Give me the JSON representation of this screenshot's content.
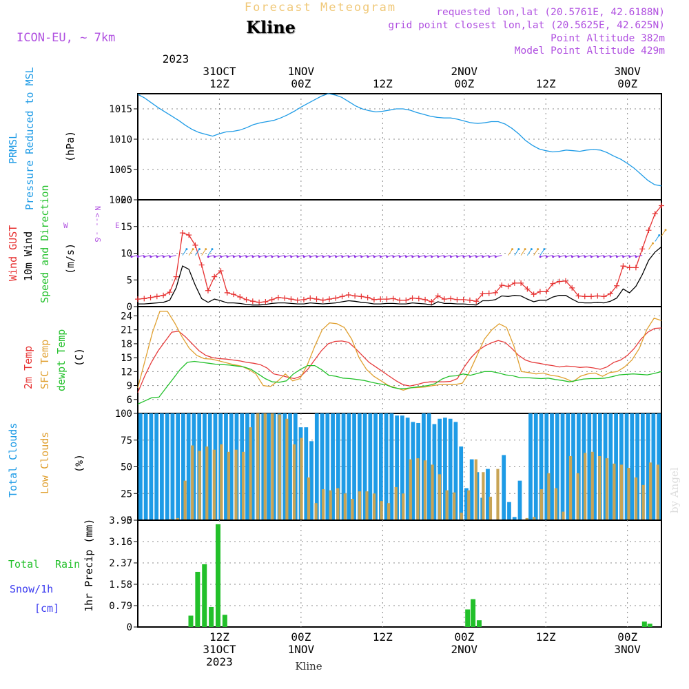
{
  "header": {
    "title": "Forecast Meteogram",
    "station": "Kline",
    "model": "ICON-EU, ~ 7km",
    "requested": "requested lon,lat (20.5761E, 42.6188N)",
    "grid_point": "grid point closest lon,lat (20.5625E, 42.625N)",
    "point_alt": "Point Altitude 382m",
    "model_alt": "Model Point Altitude 429m",
    "footer_station": "Kline",
    "watermark": "by Angel"
  },
  "time_axis": {
    "year": "2023",
    "top_labels": [
      {
        "h": 12,
        "l1": "31OCT",
        "l2": "12Z",
        "year": true
      },
      {
        "h": 24,
        "l1": "1NOV",
        "l2": "00Z"
      },
      {
        "h": 36,
        "l1": "",
        "l2": "12Z"
      },
      {
        "h": 48,
        "l1": "2NOV",
        "l2": "00Z"
      },
      {
        "h": 60,
        "l1": "",
        "l2": "12Z"
      },
      {
        "h": 72,
        "l1": "3NOV",
        "l2": "00Z"
      }
    ],
    "bottom_labels": [
      {
        "h": 12,
        "l1": "12Z",
        "l2": "31OCT",
        "l3": "2023"
      },
      {
        "h": 24,
        "l1": "00Z",
        "l2": "1NOV"
      },
      {
        "h": 36,
        "l1": "12Z",
        "l2": ""
      },
      {
        "h": 48,
        "l1": "00Z",
        "l2": "2NOV"
      },
      {
        "h": 60,
        "l1": "12Z",
        "l2": ""
      },
      {
        "h": 72,
        "l1": "00Z",
        "l2": "3NOV"
      }
    ],
    "hours": 77
  },
  "colors": {
    "pressure": "#1e9be6",
    "gust": "#e63030",
    "wind": "#000000",
    "temp2m": "#e63a3a",
    "sfc": "#e0a030",
    "dewpt": "#22c02a",
    "total_cloud": "#1e9be6",
    "low_cloud": "#c8a455",
    "rain": "#22c02a",
    "snow": "#3a3af0",
    "purple": "#b050e0",
    "arrow_purple": "#8a2be2"
  },
  "panel_labels": {
    "pressure": [
      "PRMSL",
      "Pressure Reduced to MSL"
    ],
    "pressure_unit": "(hPa)",
    "wind_gust": "Wind GUST",
    "wind_10m": "10m Wind",
    "wind_dir": "Speed and Direction",
    "wind_unit": "(m/s)",
    "compass": [
      "N",
      "<-- --",
      "S",
      "W",
      "E"
    ],
    "temp2m": "2m Temp",
    "sfc": "SFC Temp",
    "dewpt": "dewpt Temp",
    "temp_unit": "(C)",
    "total_clouds": "Total Clouds",
    "low_clouds": "Low Clouds",
    "cloud_unit": "(%)",
    "total_rain": "Total",
    "total_rain_b": "Rain",
    "snow": "Snow/1h",
    "snow_unit": "[cm]",
    "precip": "1hr Precip (mm)"
  },
  "chart_data": [
    {
      "type": "line",
      "title": "PRMSL Pressure Reduced to MSL",
      "ylabel": "(hPa)",
      "ylim": [
        1000,
        1017.5
      ],
      "yticks": [
        "1015",
        "1010",
        "1005",
        "1000"
      ],
      "x_hours": [
        0,
        1,
        2,
        3,
        4,
        5,
        6,
        7,
        8,
        9,
        10,
        11,
        12,
        13,
        14,
        15,
        16,
        17,
        18,
        19,
        20,
        21,
        22,
        23,
        24,
        25,
        26,
        27,
        28,
        29,
        30,
        31,
        32,
        33,
        34,
        35,
        36,
        37,
        38,
        39,
        40,
        41,
        42,
        43,
        44,
        45,
        46,
        47,
        48,
        49,
        50,
        51,
        52,
        53,
        54,
        55,
        56,
        57,
        58,
        59,
        60,
        61,
        62,
        63,
        64,
        65,
        66,
        67,
        68,
        69,
        70,
        71,
        72,
        73,
        74,
        75,
        76,
        77
      ],
      "series": [
        {
          "name": "PRMSL",
          "values": [
            1017.4,
            1016.8,
            1016,
            1015.2,
            1014.5,
            1013.8,
            1013.1,
            1012.3,
            1011.6,
            1011.1,
            1010.8,
            1010.5,
            1010.9,
            1011.2,
            1011.3,
            1011.5,
            1011.9,
            1012.4,
            1012.7,
            1012.9,
            1013.1,
            1013.5,
            1014.0,
            1014.6,
            1015.3,
            1015.9,
            1016.5,
            1017.1,
            1017.5,
            1017.3,
            1016.9,
            1016.2,
            1015.5,
            1015.0,
            1014.7,
            1014.5,
            1014.6,
            1014.8,
            1015.0,
            1015.0,
            1014.8,
            1014.4,
            1014.1,
            1013.8,
            1013.6,
            1013.5,
            1013.5,
            1013.3,
            1013.0,
            1012.7,
            1012.6,
            1012.7,
            1012.9,
            1012.9,
            1012.5,
            1011.8,
            1010.9,
            1009.8,
            1009.0,
            1008.4,
            1008.1,
            1007.9,
            1008.0,
            1008.2,
            1008.1,
            1008.0,
            1008.2,
            1008.3,
            1008.2,
            1007.8,
            1007.2,
            1006.7,
            1006.0,
            1005.2,
            1004.2,
            1003.2,
            1002.5,
            1002.3
          ]
        }
      ]
    },
    {
      "type": "line",
      "title": "Wind GUST / 10m Wind Speed and Direction",
      "ylabel": "(m/s)",
      "ylim": [
        0,
        20
      ],
      "yticks": [
        "20",
        "15",
        "10",
        "5",
        "0"
      ],
      "series": [
        {
          "name": "Wind GUST",
          "values": [
            1.4,
            1.5,
            1.7,
            1.9,
            2.1,
            2.7,
            5.6,
            13.8,
            13.4,
            11.5,
            7.8,
            3.0,
            5.6,
            6.7,
            2.6,
            2.3,
            1.8,
            1.3,
            1.0,
            0.8,
            0.9,
            1.3,
            1.7,
            1.6,
            1.4,
            1.2,
            1.3,
            1.6,
            1.4,
            1.2,
            1.4,
            1.6,
            1.9,
            2.2,
            2.0,
            1.9,
            1.7,
            1.3,
            1.4,
            1.4,
            1.5,
            1.2,
            1.2,
            1.6,
            1.5,
            1.3,
            0.9,
            2.0,
            1.4,
            1.5,
            1.3,
            1.3,
            1.2,
            1.0,
            2.4,
            2.5,
            2.6,
            4.0,
            3.8,
            4.4,
            4.4,
            3.3,
            2.3,
            2.8,
            2.8,
            4.3,
            4.7,
            4.8,
            3.5,
            2.0,
            1.9,
            1.9,
            2.0,
            1.9,
            2.4,
            3.9,
            7.6,
            7.3,
            7.3,
            10.8,
            14.3,
            17.4,
            18.9
          ]
        },
        {
          "name": "10m Wind",
          "values": [
            0.5,
            0.5,
            0.6,
            0.7,
            0.8,
            1.2,
            3.5,
            7.6,
            7.0,
            4.0,
            1.5,
            0.8,
            1.4,
            1.1,
            0.7,
            0.7,
            0.6,
            0.4,
            0.3,
            0.3,
            0.4,
            0.6,
            0.7,
            0.7,
            0.6,
            0.5,
            0.5,
            0.7,
            0.6,
            0.5,
            0.6,
            0.7,
            0.9,
            1.1,
            1.0,
            0.8,
            0.7,
            0.5,
            0.5,
            0.6,
            0.6,
            0.5,
            0.5,
            0.7,
            0.6,
            0.5,
            0.3,
            0.9,
            0.6,
            0.6,
            0.5,
            0.5,
            0.4,
            0.3,
            1.1,
            1.1,
            1.3,
            2.0,
            1.9,
            2.1,
            2.0,
            1.4,
            0.9,
            1.2,
            1.2,
            1.8,
            2.1,
            2.1,
            1.4,
            0.8,
            0.7,
            0.7,
            0.8,
            0.7,
            1.0,
            1.6,
            3.3,
            2.6,
            3.8,
            6.0,
            8.7,
            10.2,
            11.2
          ]
        }
      ]
    },
    {
      "type": "line",
      "title": "2m Temp / SFC Temp / dewpt Temp",
      "ylabel": "(C)",
      "ylim": [
        3,
        26
      ],
      "yticks": [
        "24",
        "21",
        "18",
        "15",
        "12",
        "9",
        "6"
      ],
      "series": [
        {
          "name": "2m Temp",
          "values": [
            7.5,
            11,
            14,
            16.5,
            18.5,
            20.5,
            20.7,
            19.5,
            18,
            16.5,
            15.5,
            15,
            14.8,
            14.7,
            14.5,
            14.3,
            14,
            13.8,
            13.5,
            12.8,
            11.5,
            11.2,
            10.8,
            10.5,
            11,
            12.5,
            14.5,
            16.5,
            18,
            18.5,
            18.6,
            18.3,
            17,
            15.5,
            14,
            13,
            12,
            11,
            10,
            9.2,
            8.9,
            9.2,
            9.6,
            9.8,
            9.8,
            9.8,
            9.9,
            10.5,
            13,
            15,
            16.5,
            17.5,
            18.2,
            18.7,
            18.3,
            17,
            15.5,
            14.5,
            14,
            13.8,
            13.5,
            13.3,
            13,
            13.2,
            13.1,
            12.9,
            13,
            12.8,
            12.5,
            13,
            14,
            14.5,
            15.5,
            17,
            19,
            20.5,
            21.3,
            21.4
          ]
        },
        {
          "name": "SFC Temp",
          "values": [
            8.5,
            14.5,
            20.5,
            25,
            25,
            22.5,
            19.5,
            17,
            15.5,
            14.8,
            14.7,
            14.3,
            13.9,
            13.5,
            13.2,
            12.5,
            11.5,
            9,
            8.8,
            10,
            11.5,
            10,
            10.5,
            13.5,
            17.5,
            21,
            22.5,
            22.3,
            21.5,
            19,
            15,
            12.5,
            11,
            10,
            9,
            8.5,
            8,
            8.5,
            8.6,
            8.7,
            9,
            9.2,
            9.2,
            9.2,
            9.5,
            12,
            15.5,
            19,
            21,
            22.3,
            21.5,
            17.5,
            12,
            11.8,
            11.5,
            11.7,
            11.2,
            11,
            10.5,
            9.8,
            11,
            11.5,
            11.7,
            11,
            11.8,
            12,
            13,
            14.5,
            17,
            21,
            23.5,
            23
          ]
        },
        {
          "name": "dewpt Temp",
          "values": [
            5,
            5.7,
            6.4,
            6.5,
            8.5,
            10.5,
            12.5,
            14,
            14.2,
            14,
            13.8,
            13.6,
            13.5,
            13.4,
            13.2,
            13,
            12.5,
            11.5,
            10.5,
            9.8,
            9.7,
            10,
            11.5,
            12.5,
            13.3,
            13.3,
            12.4,
            11.2,
            11.0,
            10.6,
            10.5,
            10.3,
            10.1,
            9.7,
            9.4,
            9.2,
            8.6,
            8.3,
            8.4,
            8.6,
            8.8,
            9,
            9.4,
            10.4,
            11.0,
            11.1,
            11.5,
            11.2,
            11.6,
            12,
            12.0,
            11.7,
            11.3,
            11.1,
            10.7,
            10.7,
            10.6,
            10.5,
            10.6,
            10.3,
            10.1,
            9.8,
            10.1,
            10.4,
            10.5,
            10.5,
            10.6,
            10.9,
            11.3,
            11.4,
            11.5,
            11.4,
            11.3,
            11.6,
            12.0
          ]
        }
      ]
    },
    {
      "type": "bar",
      "title": "Total Clouds / Low Clouds",
      "ylabel": "(%)",
      "ylim": [
        0,
        100
      ],
      "yticks": [
        "100",
        "75",
        "50",
        "25",
        "0"
      ],
      "series": [
        {
          "name": "Total Clouds",
          "values": [
            100,
            100,
            100,
            100,
            100,
            100,
            100,
            100,
            100,
            100,
            100,
            100,
            100,
            100,
            100,
            100,
            100,
            100,
            100,
            100,
            100,
            100,
            100,
            100,
            100,
            100,
            100,
            100,
            100,
            100,
            87,
            87,
            74,
            100,
            100,
            100,
            100,
            100,
            100,
            100,
            100,
            100,
            100,
            100,
            100,
            100,
            100,
            100,
            98,
            98,
            96,
            92,
            91,
            100,
            100,
            90,
            95,
            96,
            95,
            92,
            69,
            30,
            57,
            45,
            21,
            48,
            0,
            0,
            61,
            17,
            3,
            37,
            0,
            100,
            100,
            100,
            100,
            100,
            100,
            100,
            100,
            100,
            100,
            100,
            100,
            100,
            100,
            100,
            100,
            100,
            100,
            100,
            100,
            100,
            100,
            100,
            100,
            100
          ]
        },
        {
          "name": "Low Clouds",
          "values": [
            0,
            0,
            0,
            0,
            1,
            2,
            37,
            70,
            65,
            69,
            66,
            71,
            64,
            66,
            64,
            87,
            100,
            100,
            100,
            99,
            95,
            71,
            77,
            40,
            16,
            29,
            28,
            30,
            25,
            20,
            27,
            27,
            25,
            18,
            16,
            31,
            25,
            57,
            58,
            56,
            52,
            43,
            28,
            26,
            7,
            28,
            57,
            45,
            22,
            48,
            0,
            0,
            0,
            2,
            3,
            29,
            44,
            30,
            8,
            60,
            44,
            63,
            64,
            60,
            58,
            53,
            52,
            49,
            40,
            33,
            54,
            52
          ]
        }
      ]
    },
    {
      "type": "bar",
      "title": "1hr Precip (mm)",
      "ylabel": "1hr Precip (mm)",
      "ylim": [
        0,
        3.95
      ],
      "yticks": [
        "3.95",
        "3.16",
        "2.37",
        "1.58",
        "0.79",
        "0"
      ],
      "series": [
        {
          "name": "Total Rain",
          "values": [
            {
              "h": 7.8,
              "v": 0.42
            },
            {
              "h": 8.8,
              "v": 2.04
            },
            {
              "h": 9.8,
              "v": 2.32
            },
            {
              "h": 10.8,
              "v": 0.74
            },
            {
              "h": 11.8,
              "v": 3.8
            },
            {
              "h": 12.8,
              "v": 0.45
            },
            {
              "h": 48.5,
              "v": 0.65
            },
            {
              "h": 49.3,
              "v": 1.03
            },
            {
              "h": 50.2,
              "v": 0.25
            },
            {
              "h": 74.5,
              "v": 0.2
            },
            {
              "h": 75.3,
              "v": 0.12
            }
          ]
        },
        {
          "name": "Snow/1h",
          "values": []
        }
      ]
    }
  ]
}
